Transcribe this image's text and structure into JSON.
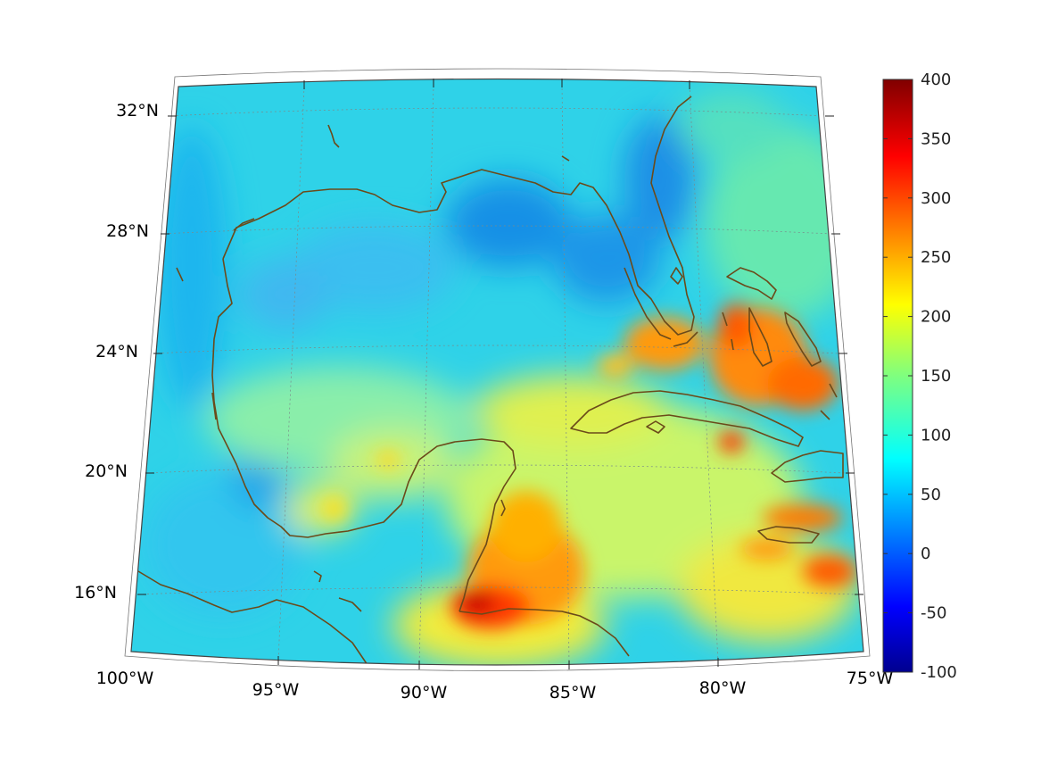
{
  "map": {
    "lat_labels": [
      "32°N",
      "28°N",
      "24°N",
      "20°N",
      "16°N"
    ],
    "lon_labels": [
      "100°W",
      "95°W",
      "90°W",
      "85°W",
      "80°W",
      "75°W"
    ],
    "region": "Gulf of Mexico and Caribbean",
    "extent": {
      "lon_min": -100,
      "lon_max": -75,
      "lat_min": 14,
      "lat_max": 32.5
    }
  },
  "colorbar": {
    "colormap": "jet",
    "ticks": [
      "400",
      "350",
      "300",
      "250",
      "200",
      "150",
      "100",
      "50",
      "0",
      "-50",
      "-100"
    ],
    "range": [
      -100,
      400
    ]
  },
  "colors": {
    "land_outline": "#6b4a1a",
    "water_base": "#2ecfe6",
    "frame": "#444444"
  }
}
